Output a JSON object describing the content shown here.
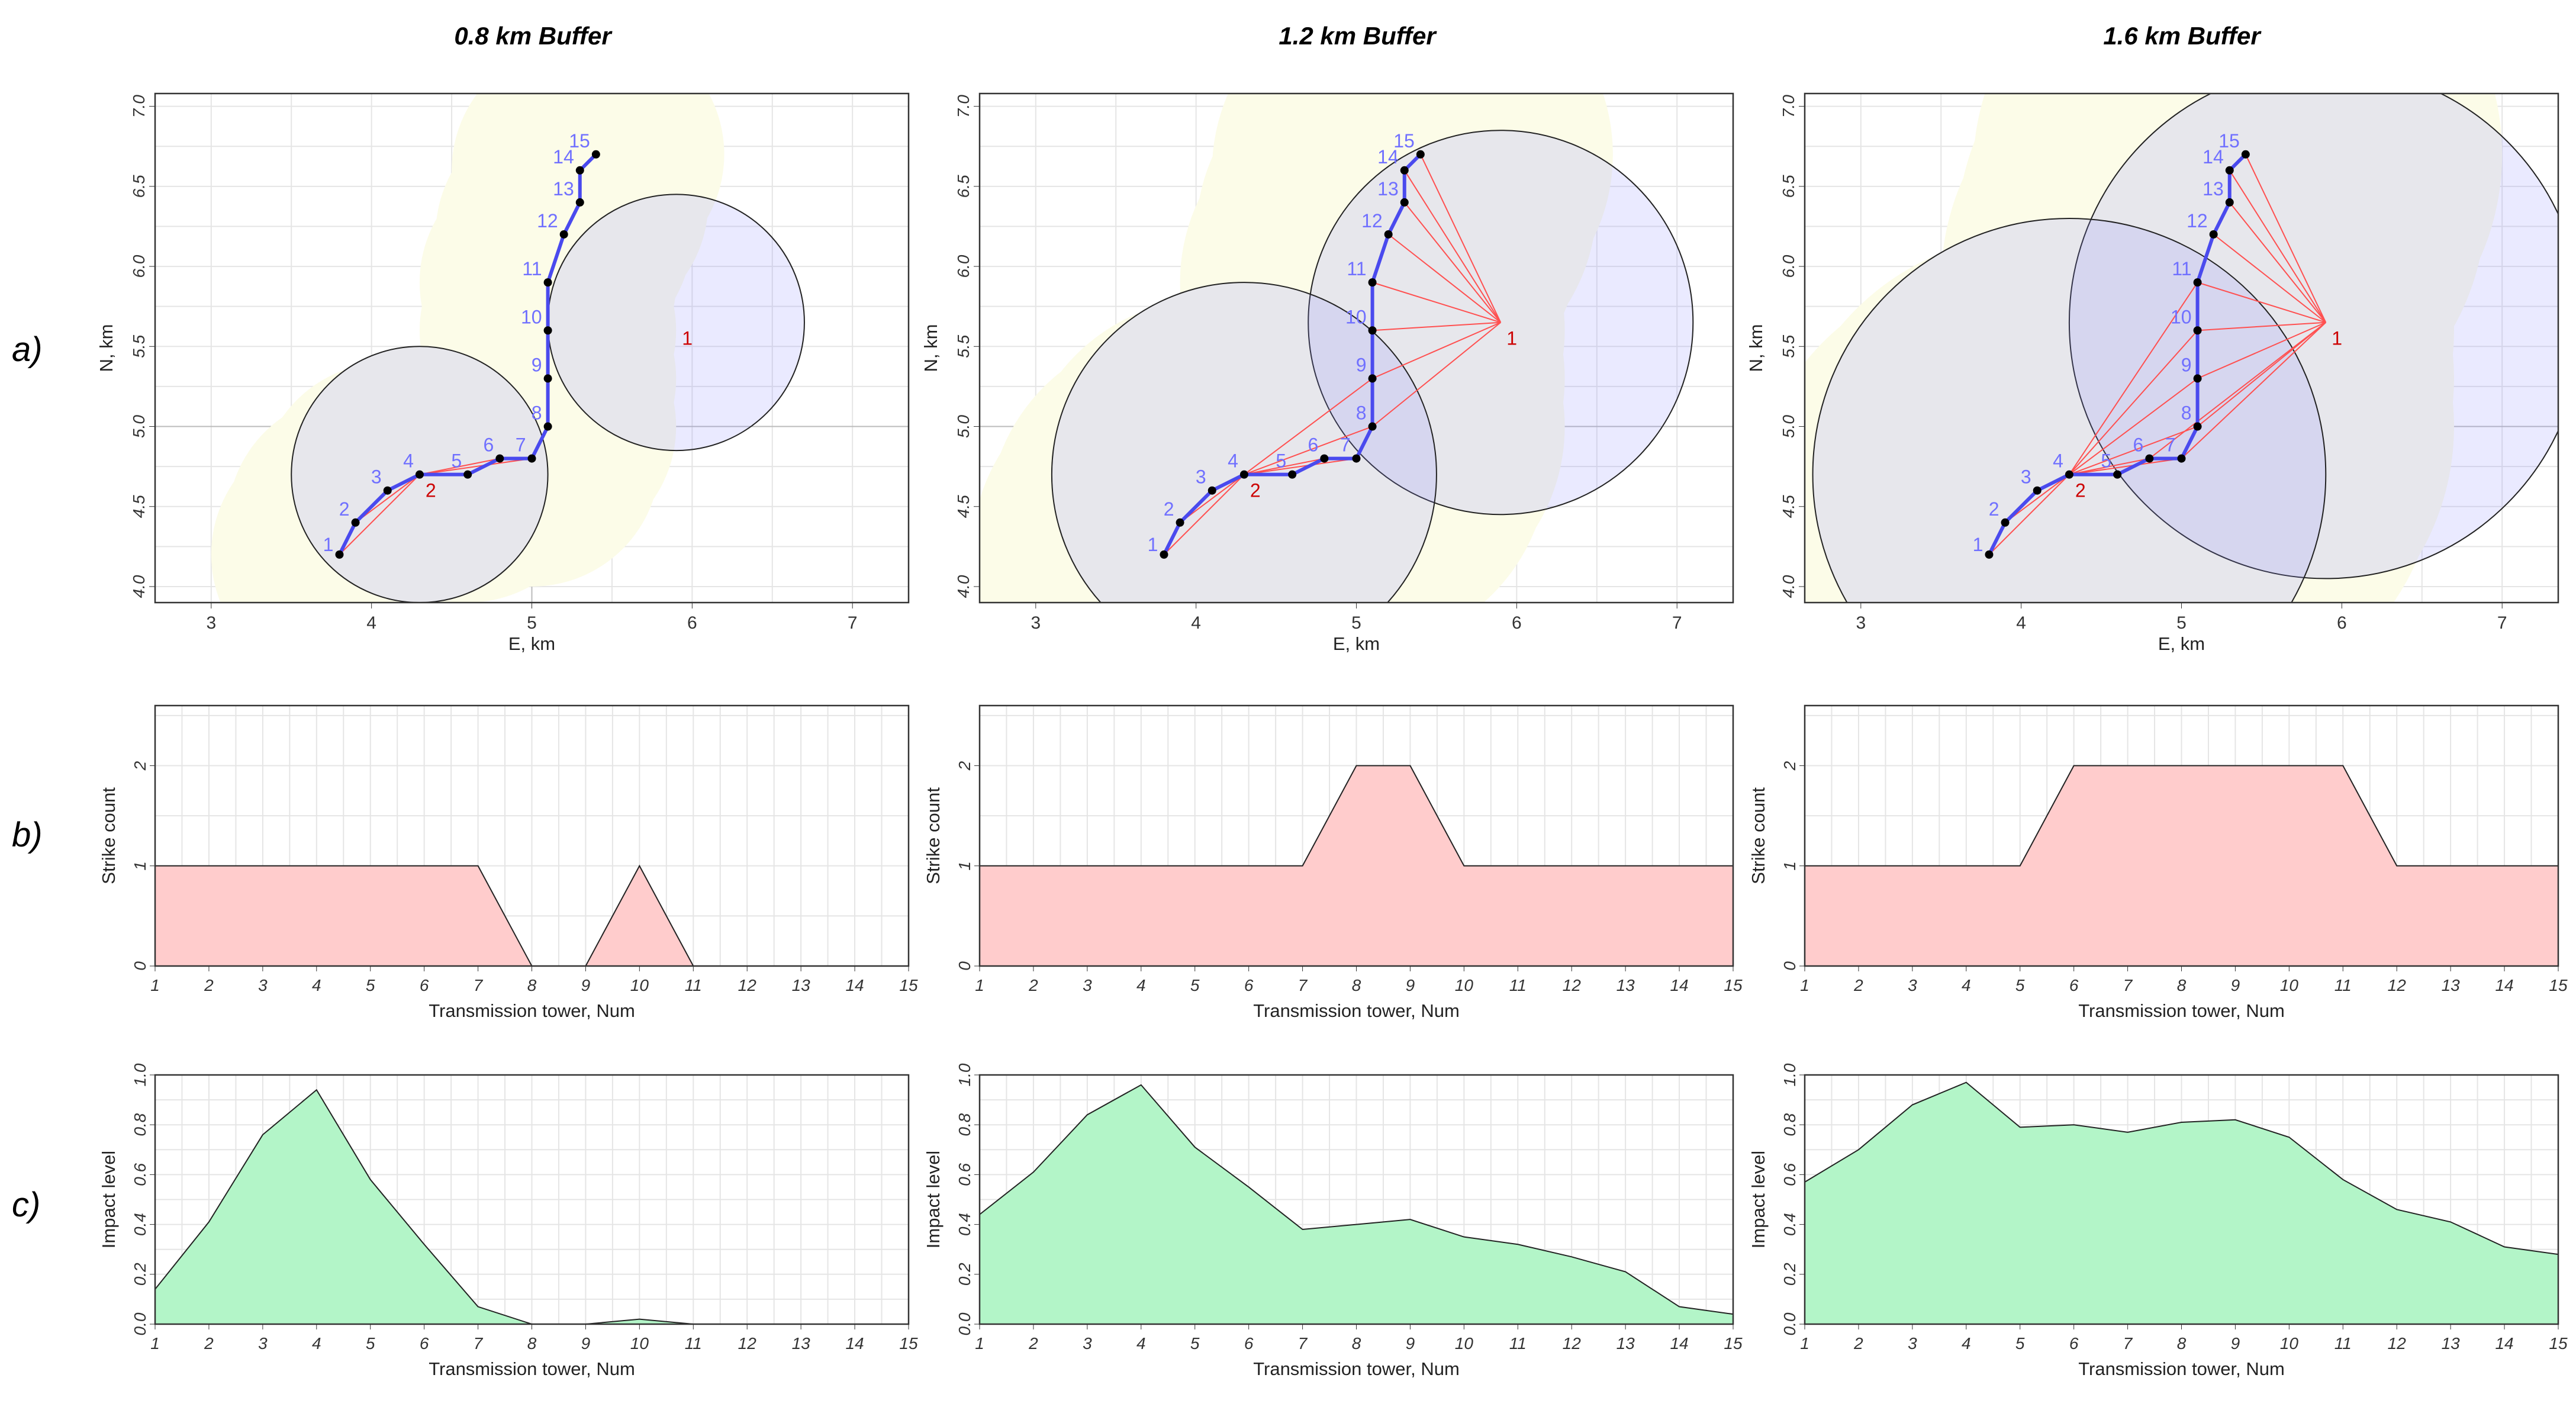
{
  "panel_titles": [
    "0.8 km Buffer",
    "1.2 km Buffer",
    "1.6 km Buffer"
  ],
  "row_labels": [
    "a)",
    "b)",
    "c)"
  ],
  "chart_data": [
    {
      "type": "scatter",
      "name": "maps",
      "xlabel": "E, km",
      "ylabel": "N, km",
      "xlim": [
        2.65,
        7.35
      ],
      "ylim": [
        3.9,
        7.08
      ],
      "xticks": [
        3,
        4,
        5,
        6,
        7
      ],
      "yticks": [
        4.0,
        4.5,
        5.0,
        5.5,
        6.0,
        6.5,
        7.0
      ],
      "ytick_labels": [
        "4.0",
        "4.5",
        "5.0",
        "5.5",
        "6.0",
        "6.5",
        "7.0"
      ],
      "reference_lines": {
        "x": 5,
        "y": 5
      },
      "towers": {
        "labels": [
          "1",
          "2",
          "3",
          "4",
          "5",
          "6",
          "7",
          "8",
          "9",
          "10",
          "11",
          "12",
          "13",
          "14",
          "15"
        ],
        "x": [
          3.8,
          3.9,
          4.1,
          4.3,
          4.6,
          4.8,
          5.0,
          5.1,
          5.1,
          5.1,
          5.1,
          5.2,
          5.3,
          5.3,
          5.4
        ],
        "y": [
          4.2,
          4.4,
          4.6,
          4.7,
          4.7,
          4.8,
          4.8,
          5.0,
          5.3,
          5.6,
          5.9,
          6.2,
          6.4,
          6.6,
          6.7
        ]
      },
      "strikes": {
        "labels": [
          "1",
          "2"
        ],
        "x": [
          5.9,
          4.3
        ],
        "y": [
          5.65,
          4.7
        ]
      },
      "buffers_km": [
        0.8,
        1.2,
        1.6
      ],
      "colors": {
        "line": "#4a4aee",
        "tower": "#000000",
        "tower_label": "#7070ff",
        "strike_label": "#cc0000",
        "ray": "#ff5050",
        "circle_fill": "rgba(140,140,255,0.18)",
        "zone_fill": "#fcfce8"
      }
    },
    {
      "type": "area",
      "name": "strike_count",
      "xlabel": "Transmission tower, Num",
      "ylabel": "Strike count",
      "x": [
        1,
        2,
        3,
        4,
        5,
        6,
        7,
        8,
        9,
        10,
        11,
        12,
        13,
        14,
        15
      ],
      "ylim": [
        0,
        2.6
      ],
      "yticks": [
        0,
        1,
        2
      ],
      "color": "#ffcccc",
      "series": [
        {
          "name": "0.8 km Buffer",
          "values": [
            1,
            1,
            1,
            1,
            1,
            1,
            1,
            0,
            0,
            1,
            0,
            0,
            0,
            0,
            0
          ]
        },
        {
          "name": "1.2 km Buffer",
          "values": [
            1,
            1,
            1,
            1,
            1,
            1,
            1,
            2,
            2,
            1,
            1,
            1,
            1,
            1,
            1
          ]
        },
        {
          "name": "1.6 km Buffer",
          "values": [
            1,
            1,
            1,
            1,
            1,
            2,
            2,
            2,
            2,
            2,
            2,
            1,
            1,
            1,
            1
          ]
        }
      ]
    },
    {
      "type": "area",
      "name": "impact_level",
      "xlabel": "Transmission tower, Num",
      "ylabel": "Impact level",
      "x": [
        1,
        2,
        3,
        4,
        5,
        6,
        7,
        8,
        9,
        10,
        11,
        12,
        13,
        14,
        15
      ],
      "ylim": [
        0,
        1.0
      ],
      "yticks": [
        0,
        0.2,
        0.4,
        0.6,
        0.8,
        1.0
      ],
      "ytick_labels": [
        "0.0",
        "0.2",
        "0.4",
        "0.6",
        "0.8",
        "1.0"
      ],
      "color": "#b3f5c8",
      "series": [
        {
          "name": "0.8 km Buffer",
          "values": [
            0.14,
            0.41,
            0.76,
            0.94,
            0.58,
            0.32,
            0.07,
            0.0,
            0.0,
            0.02,
            0.0,
            0.0,
            0.0,
            0.0,
            0.0
          ]
        },
        {
          "name": "1.2 km Buffer",
          "values": [
            0.44,
            0.61,
            0.84,
            0.96,
            0.71,
            0.55,
            0.38,
            0.4,
            0.42,
            0.35,
            0.32,
            0.27,
            0.21,
            0.07,
            0.04
          ]
        },
        {
          "name": "1.6 km Buffer",
          "values": [
            0.57,
            0.7,
            0.88,
            0.97,
            0.79,
            0.8,
            0.77,
            0.81,
            0.82,
            0.75,
            0.58,
            0.46,
            0.41,
            0.31,
            0.28
          ]
        }
      ]
    }
  ]
}
